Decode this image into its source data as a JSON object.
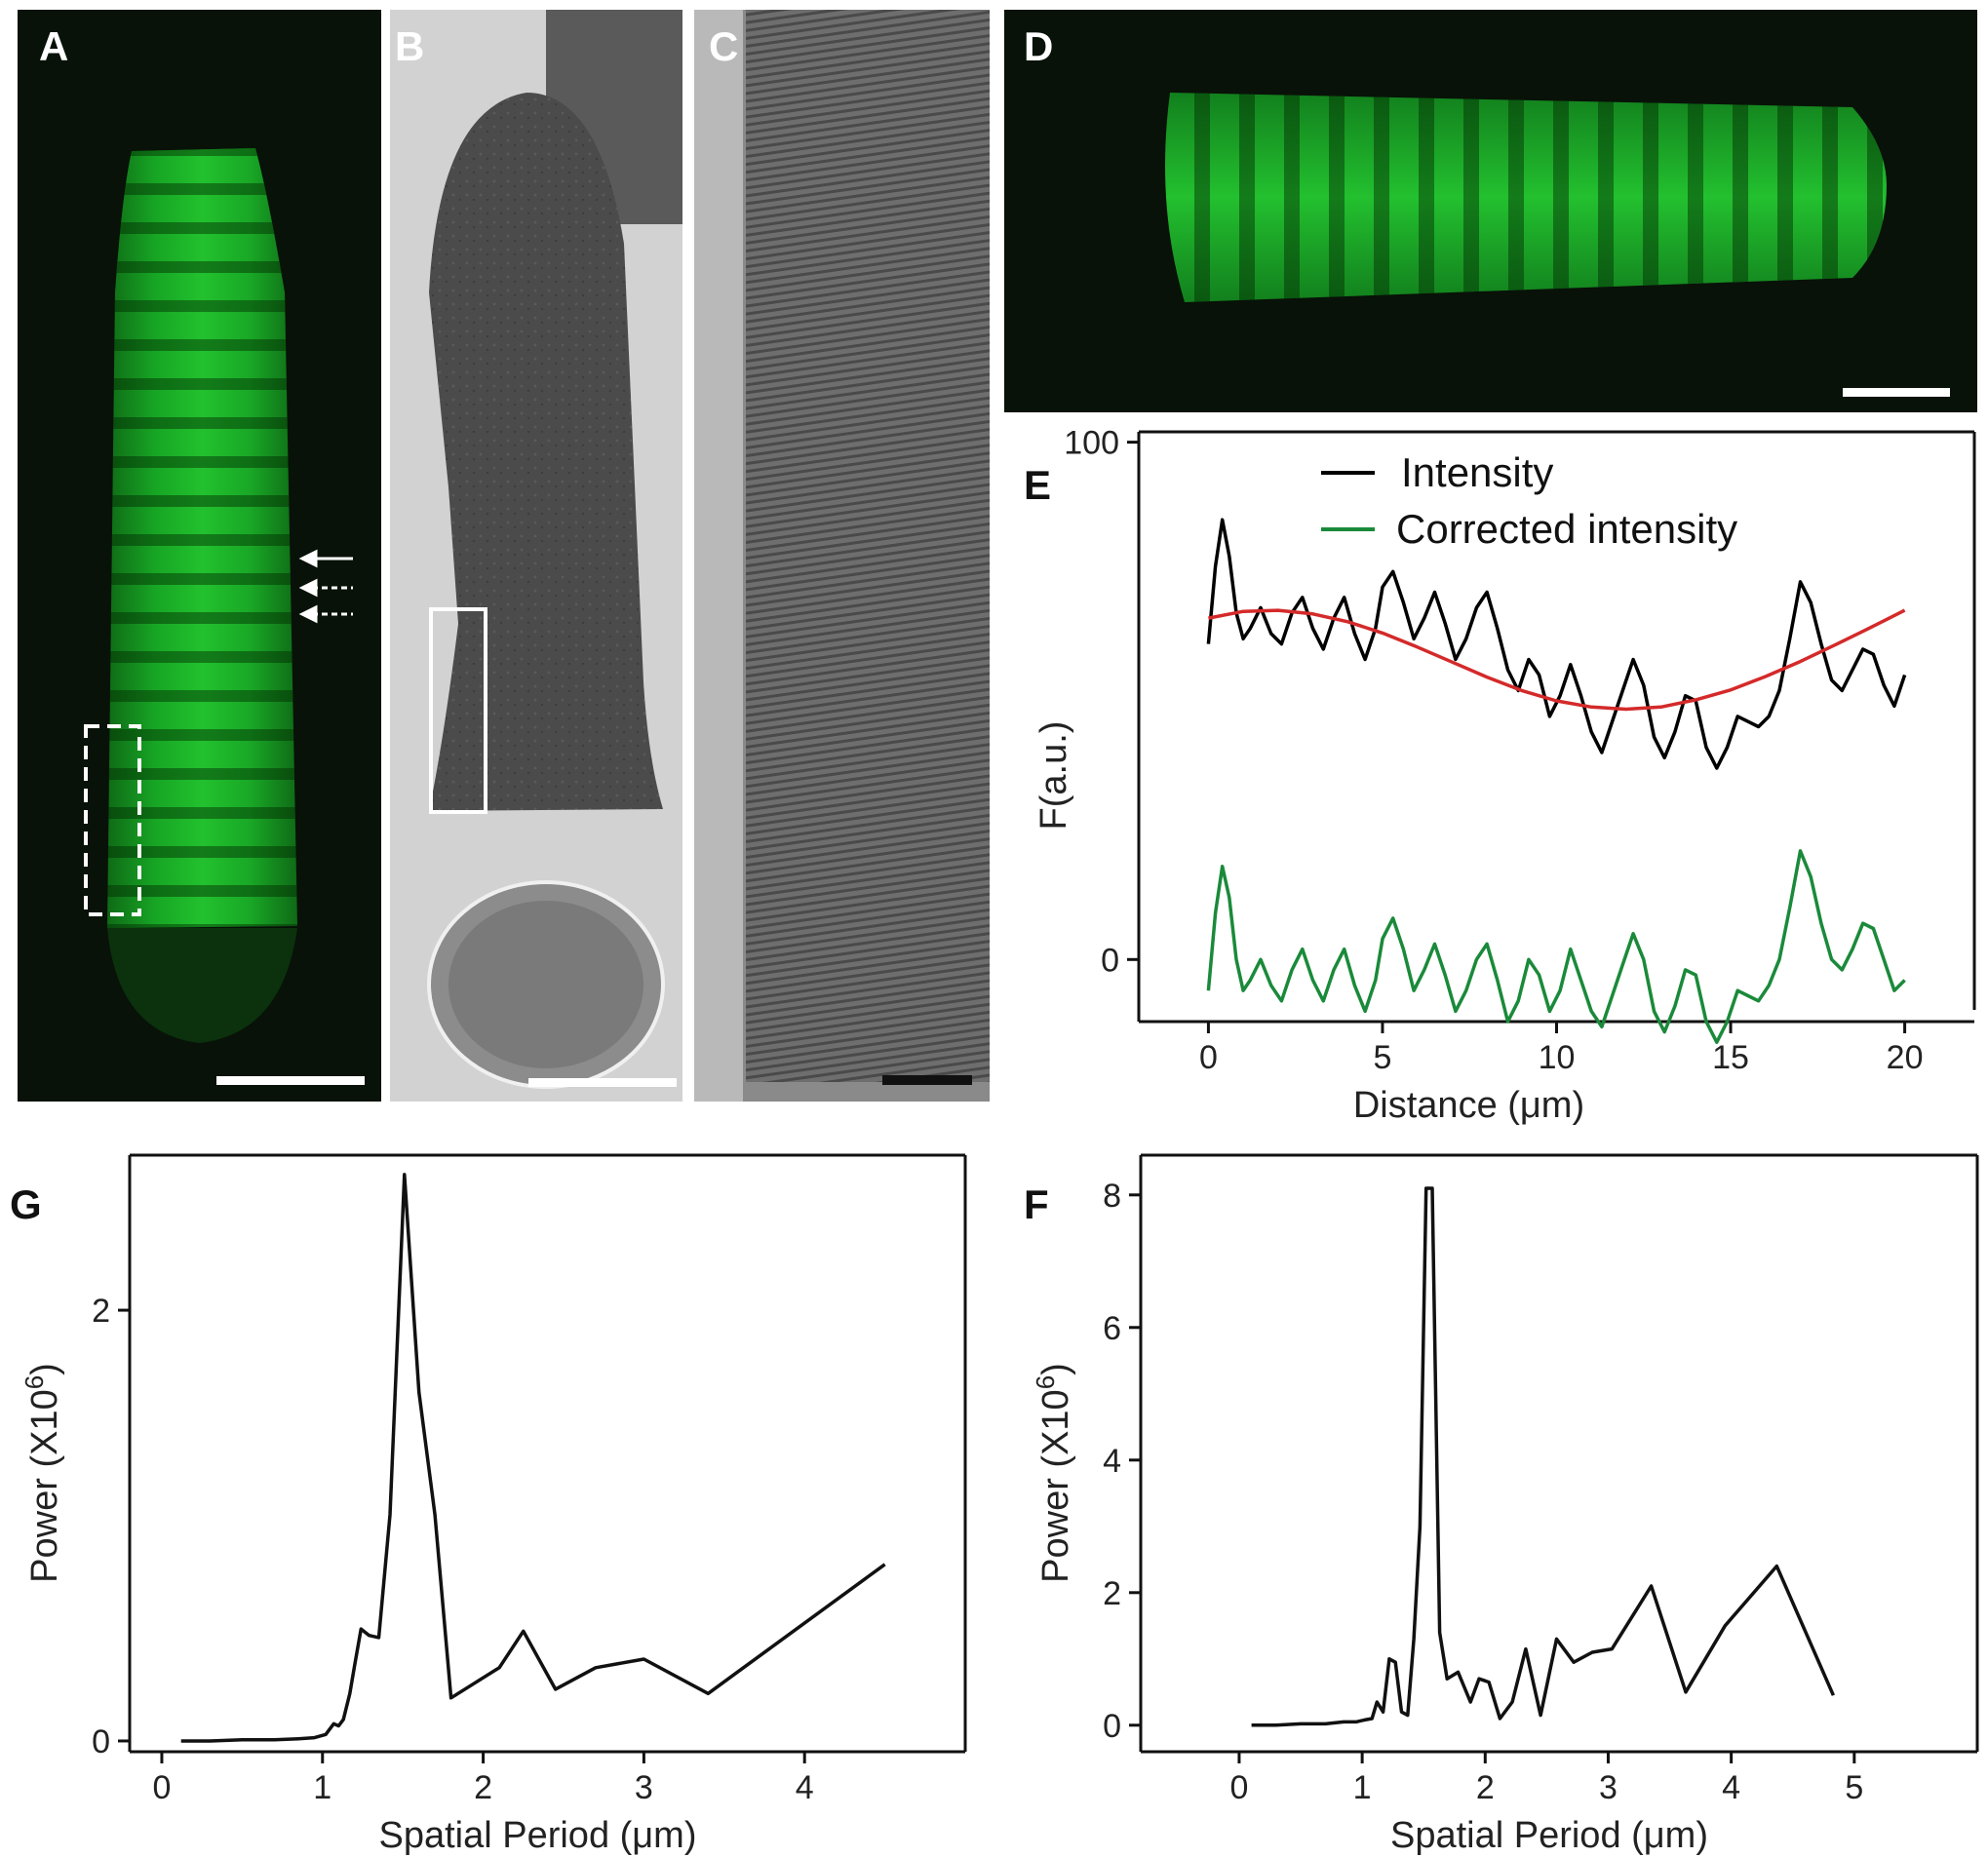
{
  "panels": {
    "A": "A",
    "B": "B",
    "C": "C",
    "D": "D",
    "E": "E",
    "F": "F",
    "G": "G"
  },
  "chart_data": [
    {
      "id": "E",
      "type": "line",
      "xlabel": "Distance (μm)",
      "ylabel": "F(a.u.)",
      "xlim": [
        -2,
        22
      ],
      "ylim": [
        -12,
        102
      ],
      "xticks": [
        0,
        5,
        10,
        15,
        20
      ],
      "yticks": [
        0,
        100
      ],
      "legend": "top",
      "series": [
        {
          "name": "Intensity",
          "color": "#000000",
          "x": [
            0,
            0.2,
            0.4,
            0.6,
            0.8,
            1.0,
            1.2,
            1.5,
            1.8,
            2.1,
            2.4,
            2.7,
            3.0,
            3.3,
            3.6,
            3.9,
            4.2,
            4.5,
            4.8,
            5.0,
            5.3,
            5.6,
            5.9,
            6.2,
            6.5,
            6.8,
            7.1,
            7.4,
            7.7,
            8.0,
            8.3,
            8.6,
            8.9,
            9.2,
            9.5,
            9.8,
            10.1,
            10.4,
            10.7,
            11.0,
            11.3,
            11.6,
            11.9,
            12.2,
            12.5,
            12.8,
            13.1,
            13.4,
            13.7,
            14.0,
            14.3,
            14.6,
            14.9,
            15.2,
            15.5,
            15.8,
            16.1,
            16.4,
            16.7,
            17.0,
            17.3,
            17.6,
            17.9,
            18.2,
            18.5,
            18.8,
            19.1,
            19.4,
            19.7,
            20.0
          ],
          "y": [
            61,
            76,
            85,
            78,
            67,
            62,
            64,
            68,
            63,
            61,
            67,
            70,
            64,
            60,
            66,
            70,
            63,
            58,
            64,
            72,
            75,
            69,
            62,
            66,
            71,
            65,
            58,
            62,
            68,
            71,
            64,
            56,
            52,
            58,
            55,
            47,
            51,
            57,
            51,
            44,
            40,
            46,
            52,
            58,
            53,
            43,
            39,
            44,
            51,
            50,
            41,
            37,
            41,
            47,
            46,
            45,
            47,
            52,
            62,
            73,
            69,
            61,
            54,
            52,
            56,
            60,
            59,
            53,
            49,
            55
          ]
        },
        {
          "name": "Corrected intensity",
          "color": "#1a8a3a",
          "x": [
            0,
            0.2,
            0.4,
            0.6,
            0.8,
            1.0,
            1.2,
            1.5,
            1.8,
            2.1,
            2.4,
            2.7,
            3.0,
            3.3,
            3.6,
            3.9,
            4.2,
            4.5,
            4.8,
            5.0,
            5.3,
            5.6,
            5.9,
            6.2,
            6.5,
            6.8,
            7.1,
            7.4,
            7.7,
            8.0,
            8.3,
            8.6,
            8.9,
            9.2,
            9.5,
            9.8,
            10.1,
            10.4,
            10.7,
            11.0,
            11.3,
            11.6,
            11.9,
            12.2,
            12.5,
            12.8,
            13.1,
            13.4,
            13.7,
            14.0,
            14.3,
            14.6,
            14.9,
            15.2,
            15.5,
            15.8,
            16.1,
            16.4,
            16.7,
            17.0,
            17.3,
            17.6,
            17.9,
            18.2,
            18.5,
            18.8,
            19.1,
            19.4,
            19.7,
            20.0
          ],
          "y": [
            -6,
            9,
            18,
            12,
            0,
            -6,
            -4,
            0,
            -5,
            -8,
            -2,
            2,
            -4,
            -8,
            -2,
            2,
            -5,
            -10,
            -4,
            4,
            8,
            2,
            -6,
            -2,
            3,
            -3,
            -10,
            -6,
            0,
            3,
            -4,
            -12,
            -8,
            0,
            -3,
            -10,
            -6,
            2,
            -4,
            -10,
            -13,
            -7,
            -1,
            5,
            0,
            -10,
            -14,
            -9,
            -2,
            -3,
            -12,
            -16,
            -12,
            -6,
            -7,
            -8,
            -5,
            0,
            10,
            21,
            16,
            7,
            0,
            -2,
            2,
            7,
            6,
            0,
            -6,
            -4
          ]
        },
        {
          "name": "",
          "color": "#d42a2a",
          "x": [
            0,
            1,
            2,
            3,
            4,
            5,
            6,
            7,
            8,
            9,
            10,
            11,
            12,
            13,
            14,
            15,
            16,
            17,
            18,
            19,
            20
          ],
          "y": [
            66,
            67.3,
            67.5,
            66.8,
            65.3,
            63.1,
            60.4,
            57.5,
            54.6,
            52,
            50,
            48.8,
            48.4,
            48.8,
            50.2,
            52.1,
            54.7,
            57.6,
            60.8,
            64.1,
            67.5
          ]
        }
      ]
    },
    {
      "id": "G",
      "type": "line",
      "xlabel": "Spatial Period (μm)",
      "ylabel": "Power (X10",
      "ylabel_sup": "6",
      "ylabel_tail": ")",
      "xlim": [
        -0.2,
        5.0
      ],
      "ylim": [
        -0.05,
        2.72
      ],
      "xticks": [
        0,
        1,
        2,
        3,
        4
      ],
      "yticks": [
        0,
        2
      ],
      "series": [
        {
          "name": "",
          "x": [
            0.12,
            0.3,
            0.5,
            0.7,
            0.85,
            0.95,
            1.02,
            1.07,
            1.1,
            1.13,
            1.17,
            1.2,
            1.24,
            1.29,
            1.35,
            1.42,
            1.51,
            1.6,
            1.7,
            1.8,
            2.1,
            2.25,
            2.45,
            2.7,
            3.0,
            3.4,
            4.5
          ],
          "y": [
            0.0,
            0.0,
            0.005,
            0.005,
            0.01,
            0.015,
            0.03,
            0.08,
            0.07,
            0.1,
            0.22,
            0.35,
            0.52,
            0.49,
            0.48,
            1.05,
            2.63,
            1.62,
            1.05,
            0.2,
            0.34,
            0.51,
            0.24,
            0.34,
            0.38,
            0.22,
            0.82
          ]
        }
      ]
    },
    {
      "id": "F",
      "type": "line",
      "xlabel": "Spatial Period (μm)",
      "ylabel": "Power (X10",
      "ylabel_sup": "6",
      "ylabel_tail": ")",
      "xlim": [
        -0.8,
        6.0
      ],
      "ylim": [
        -0.4,
        8.6
      ],
      "xticks": [
        0,
        1,
        2,
        3,
        4,
        5
      ],
      "yticks": [
        0,
        2,
        4,
        6,
        8
      ],
      "series": [
        {
          "name": "",
          "x": [
            0.1,
            0.3,
            0.5,
            0.7,
            0.85,
            0.95,
            1.02,
            1.08,
            1.12,
            1.17,
            1.22,
            1.27,
            1.32,
            1.37,
            1.42,
            1.47,
            1.52,
            1.57,
            1.63,
            1.69,
            1.78,
            1.88,
            1.95,
            2.03,
            2.12,
            2.22,
            2.33,
            2.45,
            2.58,
            2.72,
            2.87,
            3.03,
            3.35,
            3.63,
            3.95,
            4.37,
            4.83
          ],
          "y": [
            0.0,
            0.0,
            0.02,
            0.02,
            0.05,
            0.05,
            0.08,
            0.1,
            0.35,
            0.2,
            1.0,
            0.95,
            0.2,
            0.15,
            1.3,
            3.0,
            8.1,
            8.1,
            1.4,
            0.7,
            0.8,
            0.35,
            0.7,
            0.65,
            0.1,
            0.35,
            1.15,
            0.15,
            1.3,
            0.95,
            1.1,
            1.15,
            2.1,
            0.5,
            1.5,
            2.4,
            0.45
          ]
        }
      ]
    }
  ]
}
